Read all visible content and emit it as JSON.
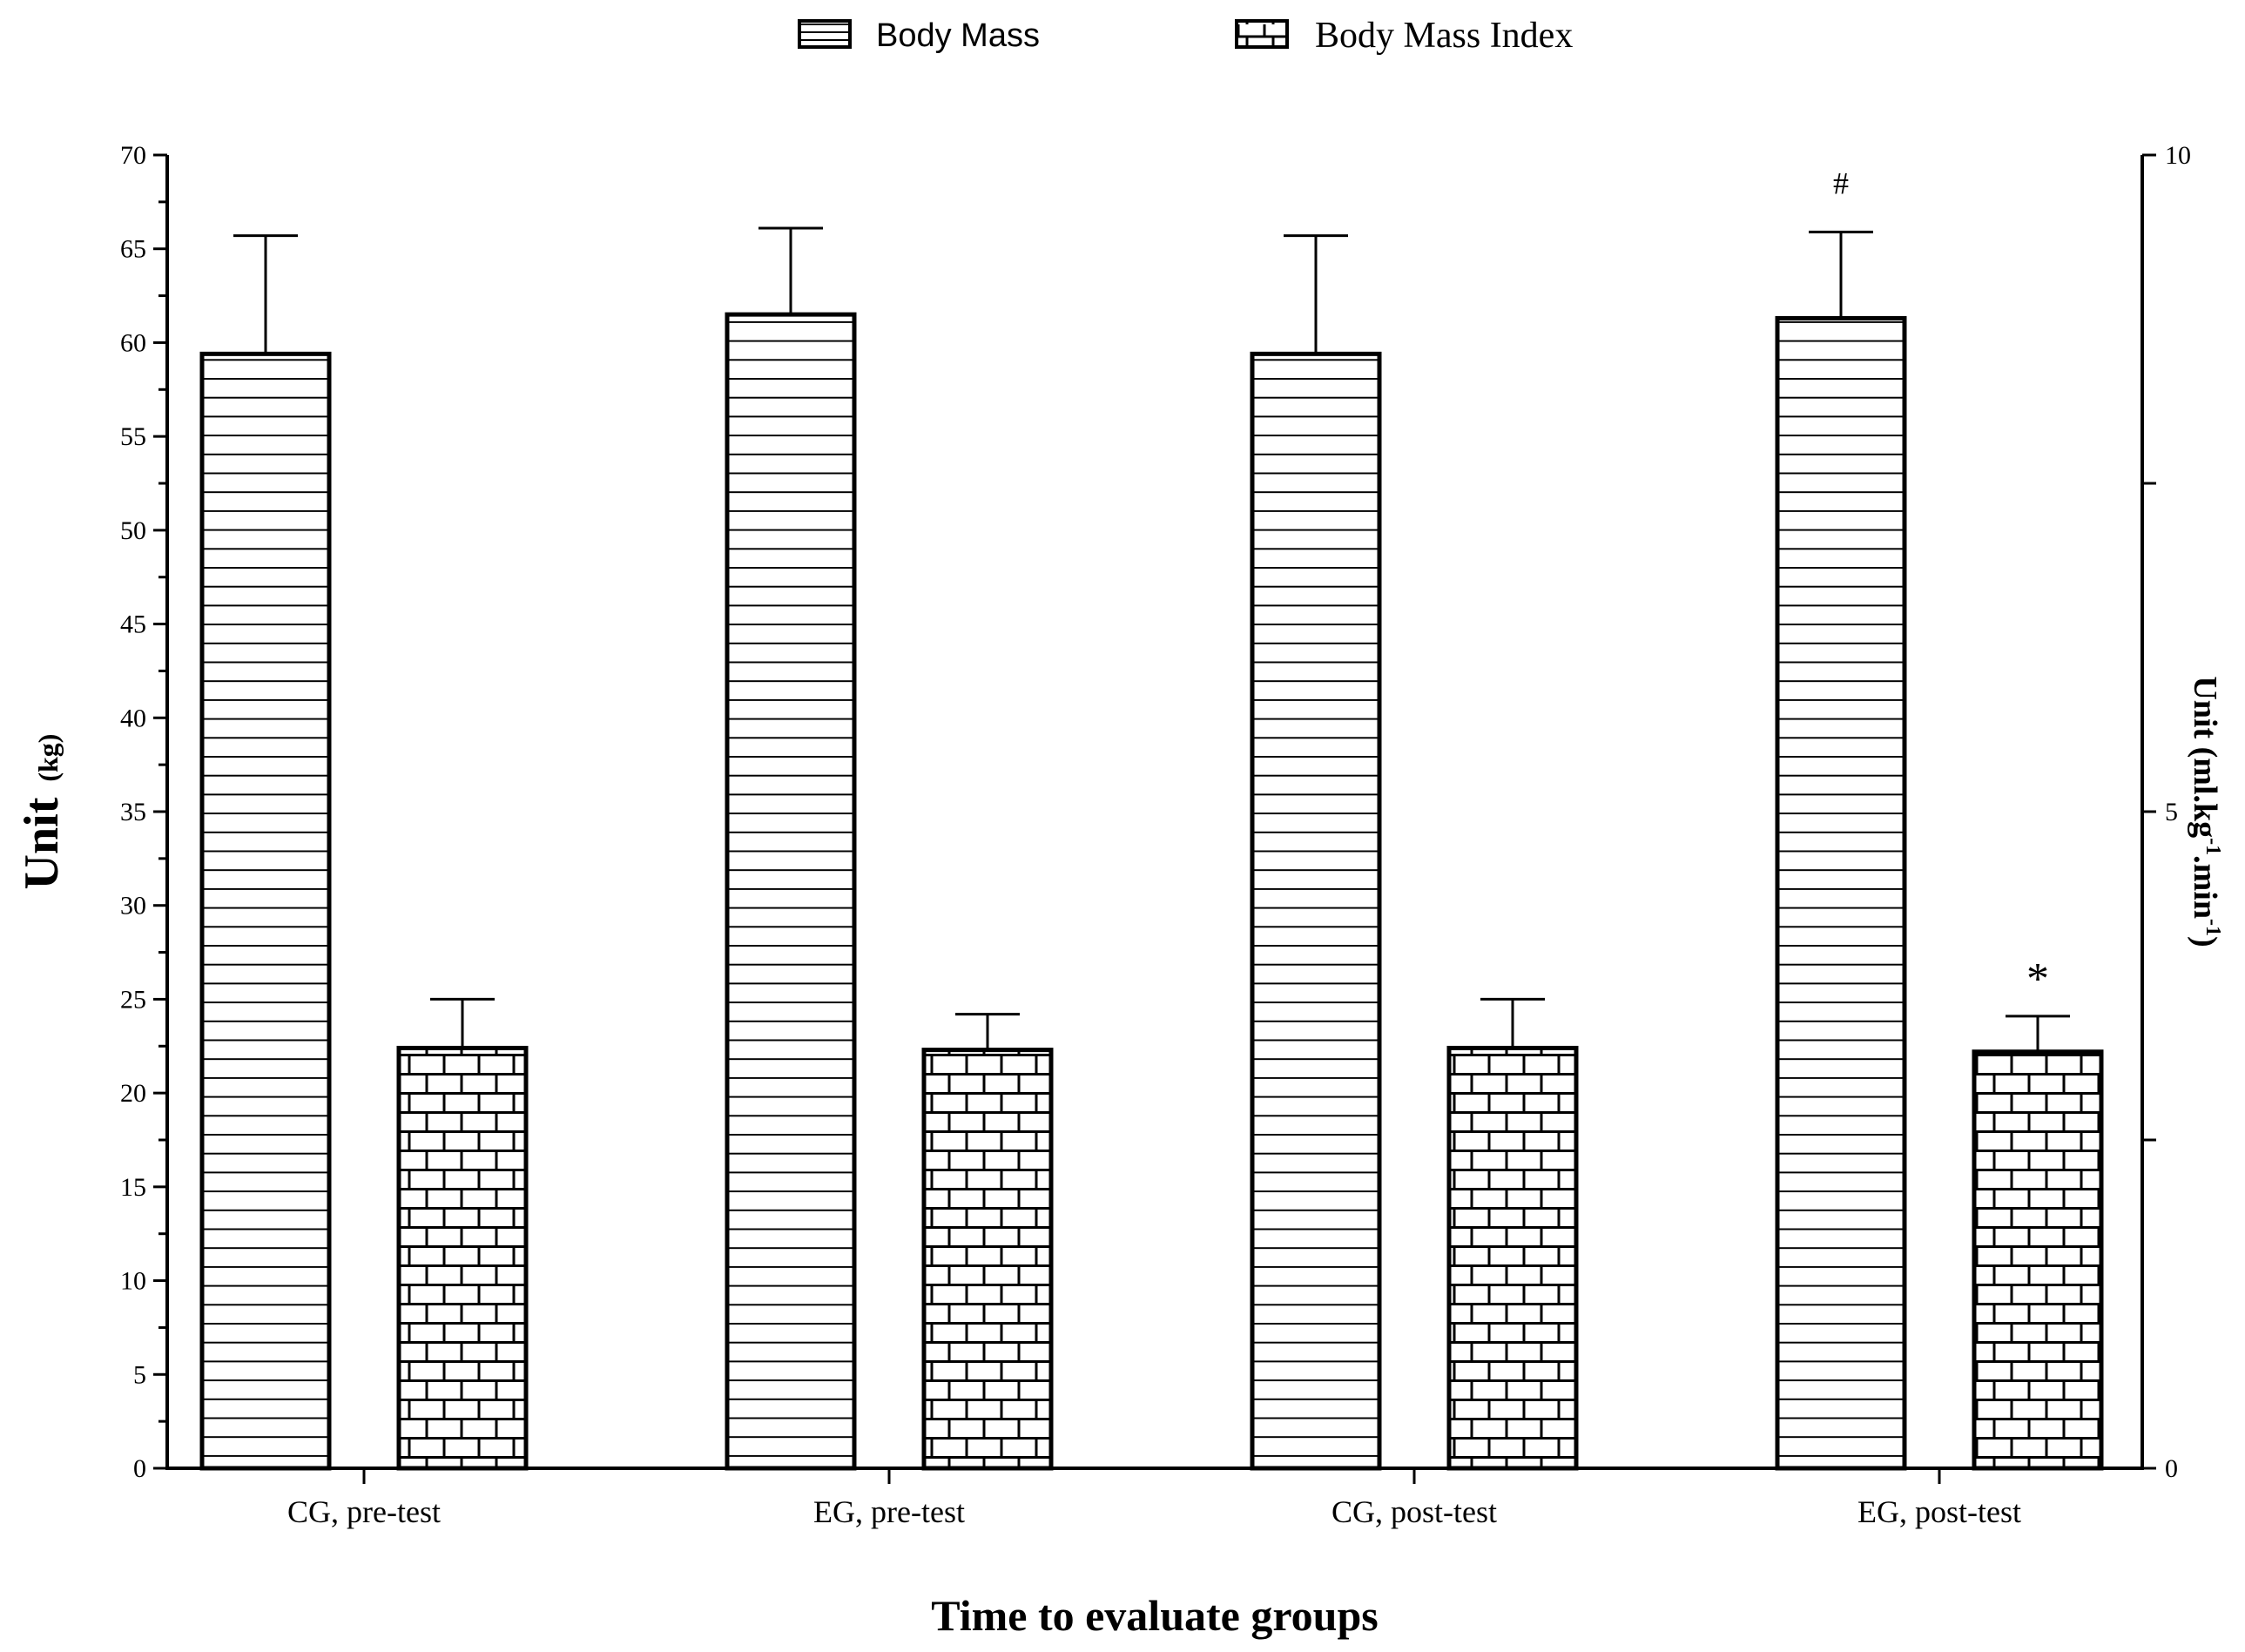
{
  "chart_data": {
    "type": "bar",
    "title": "",
    "xlabel": "Time to evaluate groups",
    "ylabel": "Unit",
    "ylabel_unit": "(kg)",
    "y2label_parts": [
      "Unit (ml.kg",
      "-1",
      ".min",
      "-1",
      ")"
    ],
    "ylim": [
      0,
      70
    ],
    "y2lim": [
      0,
      10
    ],
    "yticks": [
      0,
      5,
      10,
      15,
      20,
      25,
      30,
      35,
      40,
      45,
      50,
      55,
      60,
      65,
      70
    ],
    "y2ticks_labeled": [
      0,
      5,
      10
    ],
    "categories": [
      "CG, pre-test",
      "EG, pre-test",
      "CG, post-test",
      "EG, post-test"
    ],
    "series": [
      {
        "name": "Body Mass",
        "pattern": "horizontal-lines",
        "values": [
          59.4,
          61.5,
          59.4,
          61.3
        ],
        "errors": [
          6.3,
          4.6,
          6.3,
          4.6
        ],
        "annotations": [
          "",
          "",
          "",
          "#"
        ]
      },
      {
        "name": "Body Mass Index",
        "pattern": "brick",
        "values": [
          22.4,
          22.3,
          22.4,
          22.2
        ],
        "errors": [
          2.6,
          1.9,
          2.6,
          1.9
        ],
        "annotations": [
          "",
          "",
          "",
          "*"
        ]
      }
    ],
    "legend_position": "top-center",
    "grid": false
  },
  "colors": {
    "stroke": "#000000",
    "fill": "#ffffff"
  }
}
